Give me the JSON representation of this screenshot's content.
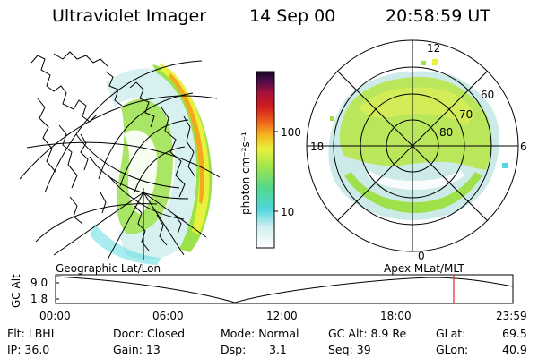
{
  "header": {
    "instrument": "Ultraviolet Imager",
    "date": "14 Sep 00",
    "time": "20:58:59 UT"
  },
  "colorbar": {
    "unit_label": "photon cm⁻²s⁻¹",
    "ticks": [
      "100",
      "10"
    ],
    "scale": "log"
  },
  "geo_panel": {
    "label": "Geographic Lat/Lon"
  },
  "polar_panel": {
    "label": "Apex  MLat/MLT",
    "mlt_labels": {
      "top": "12",
      "left": "18",
      "right": "6",
      "bottom": "0"
    },
    "lat_labels": [
      "60",
      "70",
      "80"
    ]
  },
  "altitude_plot": {
    "axis_label": "GC Alt",
    "ticks": [
      "9.0",
      "1.8"
    ],
    "time_labels": [
      "00:00",
      "06:00",
      "12:00",
      "18:00",
      "23:59"
    ],
    "current_time_marker": "20:58:59",
    "marker_color": "#e0241b"
  },
  "info": {
    "row1": {
      "filter": "Flt: LBHL",
      "door": "Door: Closed",
      "mode": "Mode: Normal",
      "gc_alt": "GC Alt: 8.9 Re",
      "glat_label": "GLat:",
      "glat_value": "69.5"
    },
    "row2": {
      "ip": "IP: 36.0",
      "gain": "Gain: 13",
      "dsp_label": "Dsp:",
      "dsp_value": "3.1",
      "seq": "Seq: 39",
      "glon_label": "GLon:",
      "glon_value": "40.9"
    }
  },
  "colors": {
    "green": "#9be24a",
    "yellow": "#e8f23c",
    "orange": "#f5a81e",
    "cyan": "#52d9e0",
    "pale": "#cdeeee"
  }
}
